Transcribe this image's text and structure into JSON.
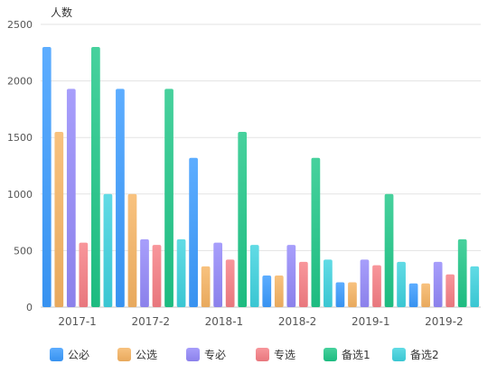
{
  "chart_data": {
    "type": "bar",
    "ylabel": "人数",
    "ylim": [
      0,
      2500
    ],
    "yticks": [
      0,
      500,
      1000,
      1500,
      2000,
      2500
    ],
    "grid": true,
    "legend_position": "bottom",
    "categories": [
      "2017-1",
      "2017-2",
      "2018-1",
      "2018-2",
      "2019-1",
      "2019-2"
    ],
    "series": [
      {
        "name": "公必",
        "color": "#3a9bff",
        "values": [
          2300,
          1930,
          1320,
          280,
          220,
          210
        ]
      },
      {
        "name": "公选",
        "color": "#f7b463",
        "values": [
          1550,
          1000,
          360,
          280,
          220,
          210
        ]
      },
      {
        "name": "专必",
        "color": "#9489fa",
        "values": [
          1930,
          600,
          570,
          550,
          420,
          400
        ]
      },
      {
        "name": "专选",
        "color": "#f77f85",
        "values": [
          570,
          550,
          420,
          400,
          370,
          290
        ]
      },
      {
        "name": "备选1",
        "color": "#1fc788",
        "values": [
          2300,
          1930,
          1550,
          1320,
          1000,
          600
        ]
      },
      {
        "name": "备选2",
        "color": "#3ed3df",
        "values": [
          1000,
          600,
          550,
          420,
          400,
          360
        ]
      }
    ]
  }
}
